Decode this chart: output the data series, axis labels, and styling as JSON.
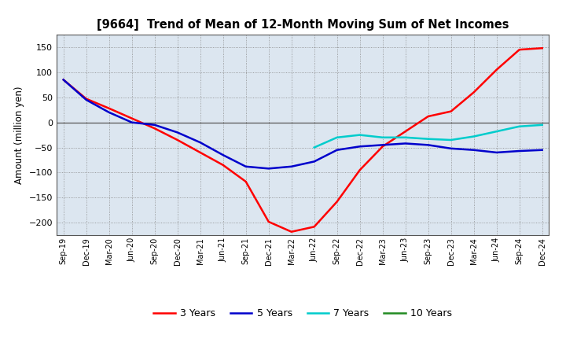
{
  "title": "[9664]  Trend of Mean of 12-Month Moving Sum of Net Incomes",
  "ylabel": "Amount (million yen)",
  "bg_color": "#ffffff",
  "plot_bg_color": "#dce6f0",
  "grid_color": "#888888",
  "ylim": [
    -225,
    175
  ],
  "yticks": [
    -200,
    -150,
    -100,
    -50,
    0,
    50,
    100,
    150
  ],
  "x_labels": [
    "Sep-19",
    "Dec-19",
    "Mar-20",
    "Jun-20",
    "Sep-20",
    "Dec-20",
    "Mar-21",
    "Jun-21",
    "Sep-21",
    "Dec-21",
    "Mar-22",
    "Jun-22",
    "Sep-22",
    "Dec-22",
    "Mar-23",
    "Jun-23",
    "Sep-23",
    "Dec-23",
    "Mar-24",
    "Jun-24",
    "Sep-24",
    "Dec-24"
  ],
  "series": {
    "3 Years": {
      "color": "#ff0000",
      "values": [
        85,
        47,
        28,
        8,
        -12,
        -35,
        -60,
        -85,
        -118,
        -198,
        -218,
        -208,
        -158,
        -95,
        -48,
        -18,
        12,
        22,
        60,
        105,
        145,
        148
      ]
    },
    "5 Years": {
      "color": "#0000cc",
      "values": [
        85,
        45,
        20,
        0,
        -5,
        -20,
        -40,
        -65,
        -88,
        -92,
        -88,
        -78,
        -55,
        -48,
        -45,
        -42,
        -45,
        -52,
        -55,
        -60,
        -57,
        -55
      ]
    },
    "7 Years": {
      "color": "#00cccc",
      "values": [
        null,
        null,
        null,
        null,
        null,
        null,
        null,
        null,
        null,
        null,
        null,
        -50,
        -30,
        -25,
        -30,
        -30,
        -33,
        -35,
        -28,
        -18,
        -8,
        -5
      ]
    },
    "10 Years": {
      "color": "#228B22",
      "values": [
        null,
        null,
        null,
        null,
        null,
        null,
        null,
        null,
        null,
        null,
        null,
        null,
        null,
        null,
        null,
        null,
        null,
        null,
        null,
        null,
        null,
        null
      ]
    }
  }
}
